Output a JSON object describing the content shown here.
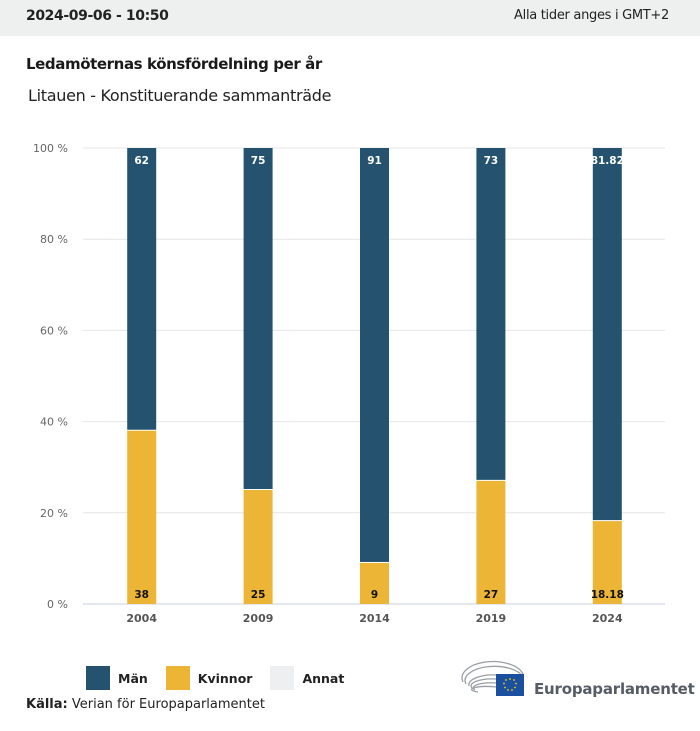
{
  "header": {
    "timestamp": "2024-09-06 - 10:50",
    "timezone_note": "Alla tider anges i GMT+2"
  },
  "title": "Ledamöternas könsfördelning per år",
  "subtitle": "Litauen - Konstituerande sammanträde",
  "legend": [
    {
      "label": "Män",
      "color": "#25536f"
    },
    {
      "label": "Kvinnor",
      "color": "#ecb535"
    },
    {
      "label": "Annat",
      "color": "#eeeff1"
    }
  ],
  "source": {
    "label": "Källa:",
    "text": "Verian för Europaparlamentet"
  },
  "logo": {
    "text": "Europaparlamentet"
  },
  "chart_data": {
    "type": "bar",
    "stacked": true,
    "title": "Ledamöternas könsfördelning per år",
    "subtitle": "Litauen - Konstituerande sammanträde",
    "xlabel": "",
    "ylabel": "",
    "categories": [
      "2004",
      "2009",
      "2014",
      "2019",
      "2024"
    ],
    "series": [
      {
        "name": "Kvinnor",
        "color": "#ecb535",
        "values": [
          38,
          25,
          9,
          27,
          18.18
        ],
        "labels": [
          "38",
          "25",
          "9",
          "27",
          "18.18"
        ]
      },
      {
        "name": "Män",
        "color": "#25536f",
        "values": [
          62,
          75,
          91,
          73,
          81.82
        ],
        "labels": [
          "62",
          "75",
          "91",
          "73",
          "81.82"
        ]
      },
      {
        "name": "Annat",
        "color": "#eeeff1",
        "values": [
          0,
          0,
          0,
          0,
          0
        ],
        "labels": []
      }
    ],
    "ylim": [
      0,
      100
    ],
    "yticks": [
      "0 %",
      "20 %",
      "40 %",
      "60 %",
      "80 %",
      "100 %"
    ],
    "ytick_values": [
      0,
      20,
      40,
      60,
      80,
      100
    ],
    "grid": true,
    "legend_position": "bottom-left"
  }
}
